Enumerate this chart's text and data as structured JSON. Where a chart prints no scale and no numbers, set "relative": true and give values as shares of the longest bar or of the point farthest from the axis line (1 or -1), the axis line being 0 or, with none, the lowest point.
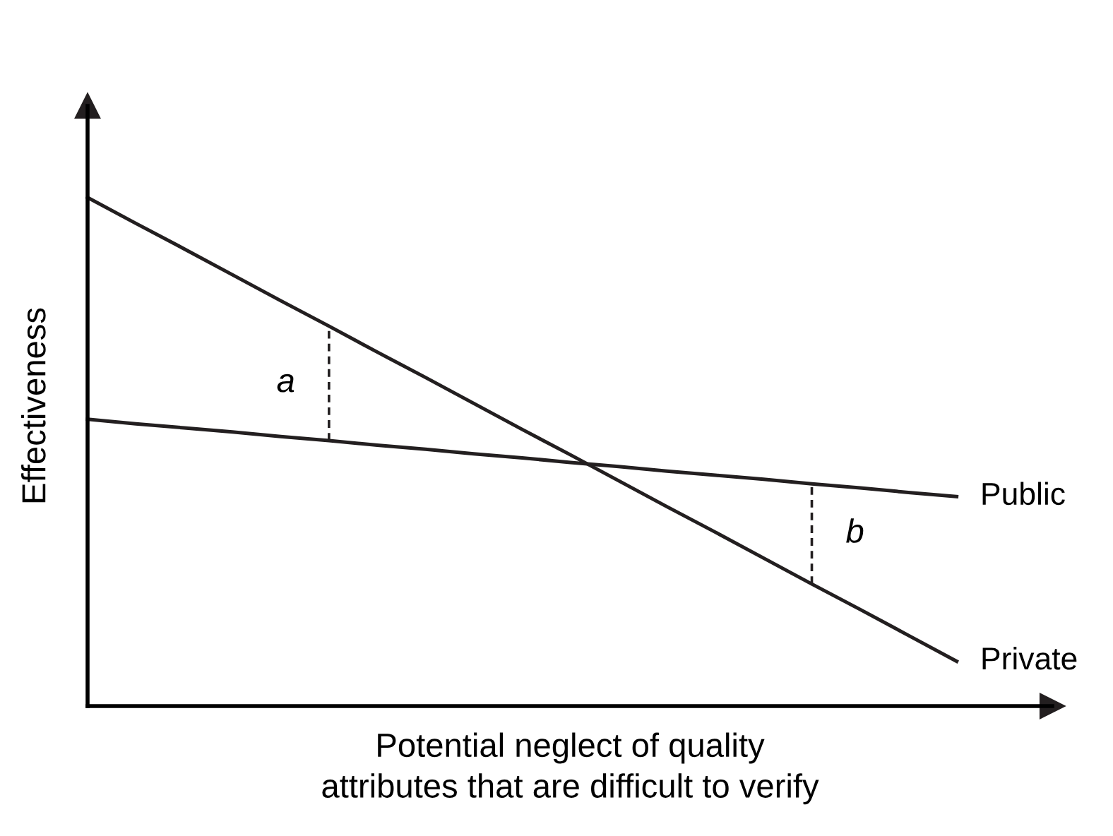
{
  "chart_data": {
    "type": "line",
    "relative": true,
    "xlabel": "Potential neglect of quality\nattributes that are difficult to verify",
    "ylabel": "Effectiveness",
    "legend": false,
    "marker": "none",
    "categories": [
      null,
      null,
      null,
      null,
      null,
      null,
      null,
      null,
      null,
      null,
      null,
      null,
      null,
      null,
      null,
      null,
      null,
      null,
      null
    ],
    "series": [
      {
        "name": "Public",
        "color": "#231f20",
        "values": [
          0.564,
          0.555,
          0.547,
          0.539,
          0.53,
          0.522,
          0.513,
          0.505,
          0.496,
          0.488,
          0.479,
          0.471,
          0.462,
          0.454,
          0.446,
          0.437,
          0.429,
          0.42,
          0.412
        ]
      },
      {
        "name": "Private",
        "color": "#231f20",
        "values": [
          1.0,
          0.949,
          0.899,
          0.848,
          0.797,
          0.747,
          0.696,
          0.646,
          0.595,
          0.544,
          0.494,
          0.443,
          0.392,
          0.342,
          0.291,
          0.24,
          0.19,
          0.139,
          0.088
        ]
      }
    ],
    "annotations": [
      "a",
      "b"
    ]
  }
}
